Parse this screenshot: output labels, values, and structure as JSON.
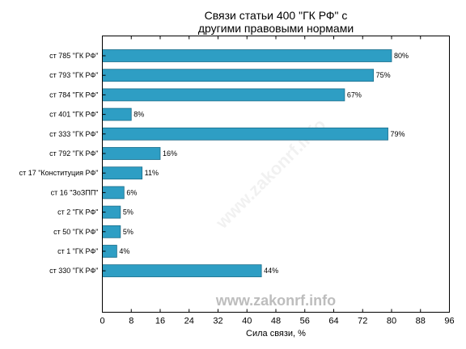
{
  "chart_data": {
    "type": "bar",
    "orientation": "horizontal",
    "title_lines": [
      "Связи статьи 400 \"ГК РФ\" с",
      "другими правовыми нормами"
    ],
    "xlabel": "Сила связи, %",
    "ylabel": "",
    "xlim": [
      0,
      96
    ],
    "xticks": [
      0,
      8,
      16,
      24,
      32,
      40,
      48,
      56,
      64,
      72,
      80,
      88,
      96
    ],
    "grid": false,
    "categories": [
      "ст 785 \"ГК РФ\"",
      "ст 793 \"ГК РФ\"",
      "ст 784 \"ГК РФ\"",
      "ст 401 \"ГК РФ\"",
      "ст 333 \"ГК РФ\"",
      "ст 792 \"ГК РФ\"",
      "ст 17 \"Конституция РФ\"",
      "ст 16 \"ЗоЗПП\"",
      "ст 2 \"ГК РФ\"",
      "ст 50 \"ГК РФ\"",
      "ст 1 \"ГК РФ\"",
      "ст 330 \"ГК РФ\""
    ],
    "values": [
      80,
      75,
      67,
      8,
      79,
      16,
      11,
      6,
      5,
      5,
      4,
      44
    ],
    "value_labels": [
      "80%",
      "75%",
      "67%",
      "8%",
      "79%",
      "16%",
      "11%",
      "6%",
      "5%",
      "5%",
      "4%",
      "44%"
    ],
    "bar_color": "#2e9ec4",
    "bar_edge_color": "#1b6d8a"
  },
  "watermark": "www.zakonrf.info"
}
